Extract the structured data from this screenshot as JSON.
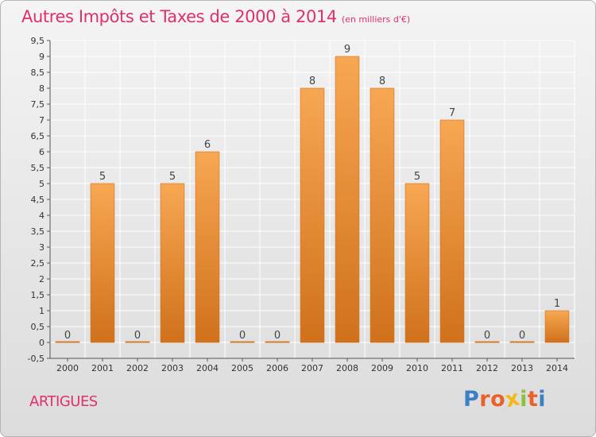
{
  "header": {
    "title": "Autres Impôts et Taxes de 2000 à 2014",
    "subtitle": "(en milliers d'€)"
  },
  "footer": {
    "commune": "ARTIGUES",
    "logo_letters": [
      "P",
      "r",
      "o",
      "x",
      "i",
      "t",
      "i"
    ]
  },
  "colors": {
    "title": "#e0306a",
    "bar_light": "#f7a752",
    "bar_dark": "#d0711c",
    "grid": "#ffffff",
    "logo": [
      "#3b7fc4",
      "#e8622a",
      "#e8622a",
      "#f3b918",
      "#8ac23e",
      "#e8622a",
      "#3b7fc4"
    ]
  },
  "chart_data": {
    "type": "bar",
    "categories": [
      "2000",
      "2001",
      "2002",
      "2003",
      "2004",
      "2005",
      "2006",
      "2007",
      "2008",
      "2009",
      "2010",
      "2011",
      "2012",
      "2013",
      "2014"
    ],
    "values": [
      0,
      5,
      0,
      5,
      6,
      0,
      0,
      8,
      9,
      8,
      5,
      7,
      0,
      0,
      1
    ],
    "data_labels": [
      "0",
      "5",
      "0",
      "5",
      "6",
      "0",
      "0",
      "8",
      "9",
      "8",
      "5",
      "7",
      "0",
      "0",
      "1"
    ],
    "title": "Autres Impôts et Taxes de 2000 à 2014",
    "xlabel": "",
    "ylabel": "",
    "ylim": [
      -0.5,
      9.5
    ],
    "yticks": [
      -0.5,
      0,
      0.5,
      1,
      1.5,
      2,
      2.5,
      3,
      3.5,
      4,
      4.5,
      5,
      5.5,
      6,
      6.5,
      7,
      7.5,
      8,
      8.5,
      9,
      9.5
    ],
    "ytick_labels": [
      "-0,5",
      "0",
      "0,5",
      "1",
      "1,5",
      "2",
      "2,5",
      "3",
      "3,5",
      "4",
      "4,5",
      "5",
      "5,5",
      "6",
      "6,5",
      "7",
      "7,5",
      "8",
      "8,5",
      "9",
      "9,5"
    ],
    "grid": true,
    "legend": "none"
  }
}
